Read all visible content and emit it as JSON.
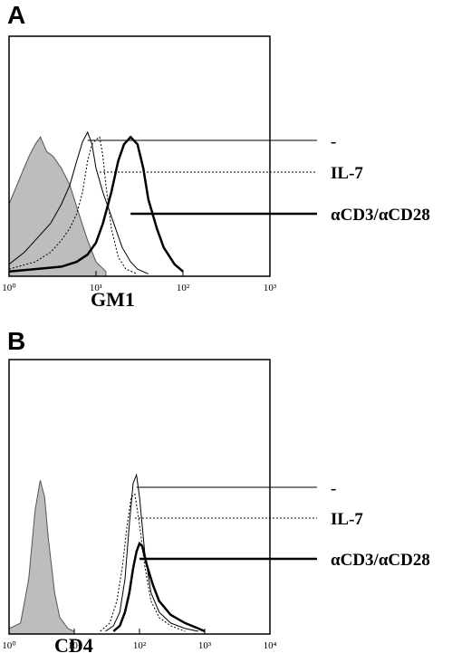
{
  "chart_data": [
    {
      "type": "histogram-overlay",
      "panel_label": "A",
      "xlabel": "GM1",
      "xscale": "log",
      "xlim": [
        1,
        1000
      ],
      "xticks": [
        {
          "value": 1,
          "label": "10⁰"
        },
        {
          "value": 10,
          "label": "10¹"
        },
        {
          "value": 100,
          "label": "10²"
        },
        {
          "value": 1000,
          "label": "10³"
        }
      ],
      "ylim": [
        0,
        100
      ],
      "series": [
        {
          "color": "#bdbdbd",
          "fill": true,
          "x": [
            1,
            1.3,
            1.7,
            2,
            2.3,
            2.7,
            3.2,
            4,
            5,
            6.5,
            8,
            10,
            13
          ],
          "values": [
            30,
            40,
            50,
            55,
            58,
            52,
            50,
            45,
            38,
            25,
            15,
            6,
            2
          ]
        },
        {
          "name": "-",
          "color": "#000000",
          "linestyle": "solid",
          "linewidth": 1,
          "x": [
            1,
            1.5,
            2,
            3,
            4,
            5,
            6,
            7,
            8,
            9,
            10,
            12,
            15,
            20,
            25,
            30,
            40
          ],
          "values": [
            5,
            10,
            15,
            22,
            30,
            38,
            48,
            56,
            60,
            55,
            45,
            35,
            25,
            12,
            6,
            3,
            1
          ]
        },
        {
          "name": "IL-7",
          "color": "#000000",
          "linestyle": "dotted",
          "linewidth": 1,
          "x": [
            1,
            2,
            3,
            4,
            5,
            6,
            7,
            8,
            9,
            10,
            11,
            12,
            13,
            15,
            18,
            22,
            30
          ],
          "values": [
            3,
            6,
            10,
            15,
            20,
            26,
            35,
            48,
            55,
            57,
            58,
            50,
            38,
            20,
            8,
            3,
            1
          ]
        },
        {
          "name": "αCD3/αCD28",
          "color": "#000000",
          "linestyle": "solid",
          "linewidth": 2.5,
          "x": [
            1,
            2,
            4,
            6,
            8,
            10,
            12,
            15,
            18,
            21,
            25,
            30,
            35,
            40,
            50,
            60,
            80,
            100
          ],
          "values": [
            2,
            3,
            4,
            6,
            9,
            14,
            22,
            35,
            48,
            55,
            58,
            55,
            45,
            32,
            20,
            12,
            5,
            2
          ]
        }
      ]
    },
    {
      "type": "histogram-overlay",
      "panel_label": "B",
      "xlabel": "CD4",
      "xscale": "log",
      "xlim": [
        1,
        10000
      ],
      "xticks": [
        {
          "value": 1,
          "label": "10⁰"
        },
        {
          "value": 10,
          "label": "10¹"
        },
        {
          "value": 100,
          "label": "10²"
        },
        {
          "value": 1000,
          "label": "10³"
        },
        {
          "value": 10000,
          "label": "10⁴"
        }
      ],
      "ylim": [
        0,
        100
      ],
      "series": [
        {
          "color": "#bdbdbd",
          "fill": true,
          "x": [
            1,
            1.5,
            2,
            2.5,
            3,
            3.5,
            4,
            5,
            6,
            8,
            10
          ],
          "values": [
            2,
            4,
            20,
            45,
            56,
            50,
            35,
            15,
            6,
            2,
            1
          ]
        },
        {
          "name": "-",
          "color": "#000000",
          "linestyle": "solid",
          "linewidth": 1,
          "x": [
            30,
            40,
            50,
            60,
            70,
            80,
            90,
            100,
            120,
            150,
            200,
            300,
            500,
            800
          ],
          "values": [
            1,
            3,
            8,
            20,
            40,
            55,
            58,
            50,
            30,
            15,
            8,
            4,
            2,
            1
          ]
        },
        {
          "name": "IL-7",
          "color": "#000000",
          "linestyle": "dotted",
          "linewidth": 1,
          "x": [
            25,
            35,
            45,
            55,
            65,
            75,
            85,
            100,
            120,
            150,
            200,
            300,
            500
          ],
          "values": [
            1,
            4,
            12,
            25,
            40,
            50,
            51,
            40,
            25,
            12,
            6,
            3,
            1
          ]
        },
        {
          "name": "αCD3/αCD28",
          "color": "#000000",
          "linestyle": "solid",
          "linewidth": 2.5,
          "x": [
            40,
            50,
            60,
            70,
            80,
            90,
            100,
            110,
            130,
            160,
            200,
            300,
            500,
            800,
            1000
          ],
          "values": [
            1,
            3,
            8,
            15,
            24,
            30,
            33,
            32,
            25,
            18,
            12,
            7,
            4,
            2,
            1
          ]
        }
      ]
    }
  ]
}
